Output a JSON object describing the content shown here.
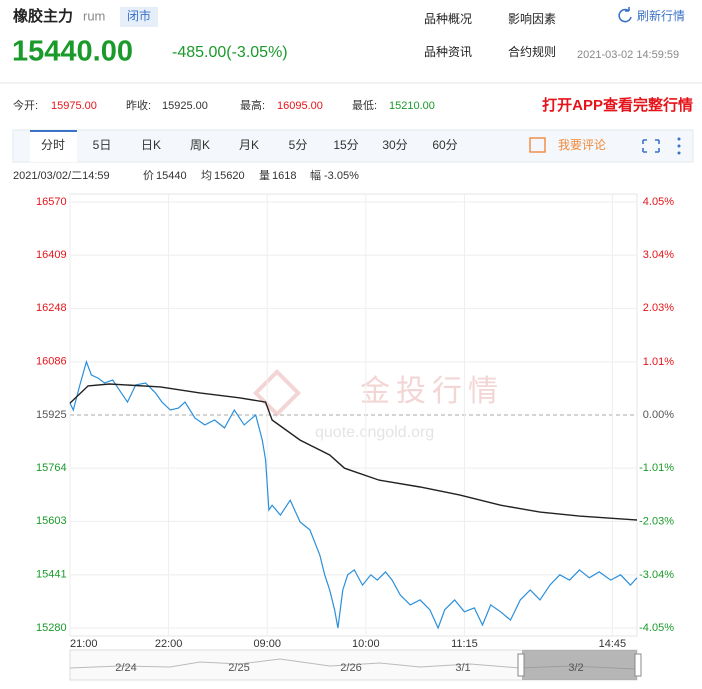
{
  "header": {
    "name": "橡胶主力",
    "code": "rum",
    "status": "闭市",
    "price": "15440.00",
    "change": "-485.00(-3.05%)",
    "links": [
      "品种概况",
      "影响因素",
      "品种资讯",
      "合约规则"
    ],
    "refresh": "刷新行情",
    "datetime": "2021-03-02 14:59:59"
  },
  "stats": [
    {
      "label": "今开:",
      "value": "15975.00"
    },
    {
      "label": "昨收:",
      "value": "15925.00"
    },
    {
      "label": "最高:",
      "value": "16095.00"
    },
    {
      "label": "最低:",
      "value": "15210.00"
    }
  ],
  "promo": "打开APP查看完整行情",
  "tabs": [
    "分时",
    "5日",
    "日K",
    "周K",
    "月K",
    "5分",
    "15分",
    "30分",
    "60分"
  ],
  "comment": "我要评论",
  "info": {
    "time": "2021/03/02/二14:59",
    "price_label": "价",
    "price": "15440",
    "avg_label": "均",
    "avg": "15620",
    "vol_label": "量",
    "vol": "1618",
    "amp_label": "幅",
    "amp": "-3.05%"
  },
  "watermark": {
    "brand": "金投行情",
    "url": "quote.cngold.org"
  },
  "chart_data": {
    "type": "line",
    "xlim": [
      0,
      345
    ],
    "xticks": [
      {
        "value": 0,
        "label": "21:00"
      },
      {
        "value": 60,
        "label": "22:00"
      },
      {
        "value": 120,
        "label": "09:00"
      },
      {
        "value": 180,
        "label": "10:00"
      },
      {
        "value": 240,
        "label": "11:15"
      },
      {
        "value": 330,
        "label": "14:45"
      }
    ],
    "ylim": [
      15280,
      16570
    ],
    "yticks": [
      16570,
      16409,
      16248,
      16086,
      15925,
      15764,
      15603,
      15441,
      15280
    ],
    "y2lim": [
      -4.05,
      4.05
    ],
    "y2ticks": [
      {
        "value": 4.05,
        "label": "4.05%"
      },
      {
        "value": 3.04,
        "label": "3.04%"
      },
      {
        "value": 2.03,
        "label": "2.03%"
      },
      {
        "value": 1.01,
        "label": "1.01%"
      },
      {
        "value": 0,
        "label": "0.00%"
      },
      {
        "value": -1.01,
        "label": "-1.01%"
      },
      {
        "value": -2.03,
        "label": "-2.03%"
      },
      {
        "value": -3.04,
        "label": "-3.04%"
      },
      {
        "value": -4.05,
        "label": "-4.05%"
      }
    ],
    "grid": true,
    "series": [
      {
        "color": "#2a8fdb",
        "x": [
          0,
          2,
          6,
          10,
          13,
          17,
          21,
          26,
          30,
          35,
          40,
          46,
          52,
          56,
          61,
          66,
          70,
          76,
          82,
          88,
          94,
          100,
          106,
          113,
          117,
          119,
          121,
          123,
          128,
          134,
          140,
          146,
          152,
          155,
          158,
          161,
          163,
          166,
          169,
          173,
          178,
          183,
          187,
          192,
          196,
          201,
          207,
          213,
          219,
          224,
          228,
          234,
          240,
          246,
          251,
          256,
          262,
          268,
          274,
          280,
          286,
          292,
          298,
          304,
          310,
          316,
          322,
          329,
          335,
          341,
          345
        ],
        "values": [
          15961,
          15940,
          16016,
          16086,
          16046,
          16037,
          16022,
          16031,
          16001,
          15964,
          16016,
          16022,
          15992,
          15964,
          15940,
          15946,
          15964,
          15916,
          15895,
          15910,
          15886,
          15940,
          15895,
          15925,
          15849,
          15789,
          15637,
          15652,
          15622,
          15667,
          15601,
          15577,
          15501,
          15441,
          15395,
          15335,
          15280,
          15395,
          15441,
          15456,
          15410,
          15441,
          15425,
          15450,
          15425,
          15380,
          15350,
          15365,
          15335,
          15280,
          15335,
          15365,
          15329,
          15341,
          15289,
          15350,
          15329,
          15304,
          15365,
          15395,
          15365,
          15410,
          15441,
          15425,
          15456,
          15432,
          15450,
          15425,
          15441,
          15410,
          15432
        ]
      },
      {
        "color": "#222222",
        "x": [
          0,
          11,
          24,
          55,
          79,
          103,
          119,
          123,
          140,
          158,
          167,
          188,
          213,
          237,
          262,
          286,
          310,
          345
        ],
        "values": [
          15961,
          16013,
          16019,
          16010,
          15992,
          15977,
          15964,
          15910,
          15849,
          15804,
          15764,
          15728,
          15707,
          15683,
          15652,
          15631,
          15619,
          15607
        ]
      }
    ]
  },
  "navigator": {
    "labels": [
      "2/24",
      "2/25",
      "2/26",
      "3/1",
      "3/2"
    ]
  }
}
